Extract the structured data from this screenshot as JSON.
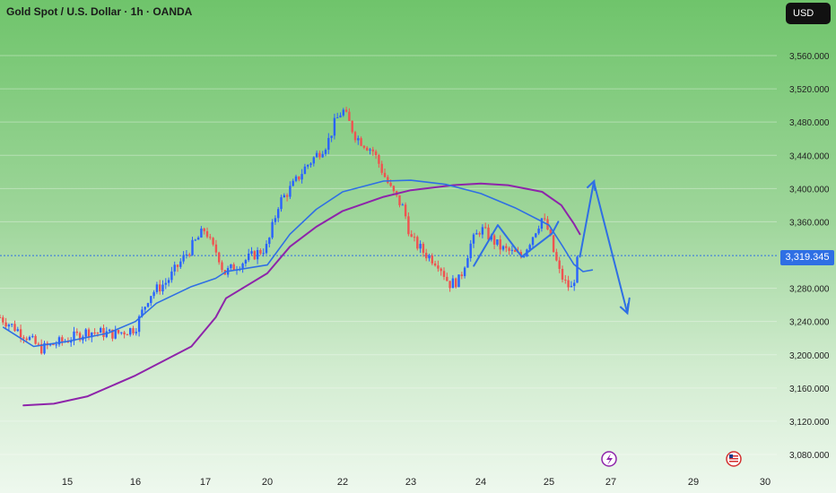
{
  "header": {
    "title": "Gold Spot / U.S. Dollar · 1h · OANDA",
    "currency": "USD"
  },
  "current_price": "3,319.345",
  "colors": {
    "up": "#2962ff",
    "down": "#ef5350",
    "ma_fast": "#2f6fe4",
    "ma_slow": "#8e24aa",
    "projection": "#2f6fe4"
  },
  "icons": [
    "lightning-icon",
    "us-flag-icon"
  ],
  "chart_data": {
    "type": "candlestick",
    "y_tick_labels": [
      "3,560.000",
      "3,520.000",
      "3,480.000",
      "3,440.000",
      "3,400.000",
      "3,360.000",
      "3,280.000",
      "3,240.000",
      "3,200.000",
      "3,160.000",
      "3,120.000",
      "3,080.000"
    ],
    "y_tick_values": [
      3560,
      3520,
      3480,
      3440,
      3400,
      3360,
      3280,
      3240,
      3200,
      3160,
      3120,
      3080
    ],
    "x_tick_labels": [
      "15",
      "16",
      "17",
      "20",
      "22",
      "23",
      "24",
      "25",
      "27",
      "29",
      "30"
    ],
    "x_tick_days": [
      15,
      16,
      17,
      20,
      22,
      23,
      24,
      25,
      27,
      29,
      30
    ],
    "ylim": [
      3075,
      3595
    ],
    "last_price": 3319.345,
    "candles_close_path": [
      [
        14.0,
        3245
      ],
      [
        14.4,
        3222
      ],
      [
        14.6,
        3207
      ],
      [
        15.0,
        3218
      ],
      [
        15.3,
        3228
      ],
      [
        15.7,
        3225
      ],
      [
        16.0,
        3232
      ],
      [
        16.2,
        3272
      ],
      [
        16.45,
        3288
      ],
      [
        16.7,
        3318
      ],
      [
        17.0,
        3352
      ],
      [
        17.3,
        3330
      ],
      [
        17.6,
        3322
      ],
      [
        17.9,
        3298
      ],
      [
        20.0,
        3330
      ],
      [
        20.3,
        3382
      ],
      [
        20.7,
        3405
      ],
      [
        21.0,
        3425
      ],
      [
        21.3,
        3440
      ],
      [
        21.6,
        3455
      ],
      [
        21.8,
        3480
      ],
      [
        22.0,
        3495
      ],
      [
        22.2,
        3462
      ],
      [
        22.45,
        3445
      ],
      [
        22.7,
        3400
      ],
      [
        22.9,
        3375
      ],
      [
        23.0,
        3340
      ],
      [
        23.2,
        3322
      ],
      [
        23.4,
        3310
      ],
      [
        23.55,
        3285
      ],
      [
        23.7,
        3290
      ],
      [
        23.85,
        3332
      ],
      [
        24.0,
        3352
      ],
      [
        24.3,
        3328
      ],
      [
        24.6,
        3318
      ],
      [
        24.9,
        3365
      ],
      [
        25.1,
        3330
      ],
      [
        25.35,
        3298
      ],
      [
        25.55,
        3285
      ],
      [
        25.75,
        3279
      ],
      [
        25.95,
        3318
      ]
    ],
    "ma_fast": [
      [
        14.05,
        3233
      ],
      [
        14.5,
        3210
      ],
      [
        15.0,
        3216
      ],
      [
        15.6,
        3226
      ],
      [
        16.0,
        3240
      ],
      [
        16.3,
        3262
      ],
      [
        16.8,
        3282
      ],
      [
        17.5,
        3292
      ],
      [
        18.0,
        3300
      ],
      [
        20.0,
        3308
      ],
      [
        20.6,
        3345
      ],
      [
        21.3,
        3375
      ],
      [
        22.0,
        3396
      ],
      [
        22.6,
        3409
      ],
      [
        23.0,
        3410
      ],
      [
        23.5,
        3405
      ],
      [
        24.0,
        3394
      ],
      [
        24.5,
        3377
      ],
      [
        25.0,
        3356
      ],
      [
        25.4,
        3333
      ],
      [
        25.8,
        3309
      ],
      [
        26.1,
        3300
      ],
      [
        26.4,
        3302
      ]
    ],
    "ma_slow": [
      [
        14.35,
        3139
      ],
      [
        14.8,
        3141
      ],
      [
        15.3,
        3150
      ],
      [
        16.0,
        3175
      ],
      [
        16.8,
        3210
      ],
      [
        17.5,
        3245
      ],
      [
        18.0,
        3268
      ],
      [
        20.0,
        3298
      ],
      [
        20.6,
        3330
      ],
      [
        21.3,
        3354
      ],
      [
        22.0,
        3373
      ],
      [
        22.6,
        3390
      ],
      [
        23.0,
        3398
      ],
      [
        23.6,
        3404
      ],
      [
        24.0,
        3406
      ],
      [
        24.4,
        3404
      ],
      [
        24.9,
        3396
      ],
      [
        25.4,
        3380
      ],
      [
        25.8,
        3358
      ],
      [
        26.0,
        3345
      ]
    ],
    "projection": [
      [
        26.0,
        3318
      ],
      [
        26.45,
        3408
      ],
      [
        27.4,
        3250
      ],
      [
        27.45,
        3268
      ]
    ],
    "pattern_lines": [
      [
        23.9,
        3307
      ],
      [
        24.25,
        3356
      ],
      [
        24.6,
        3318
      ],
      [
        25.1,
        3346
      ],
      [
        25.3,
        3360
      ]
    ]
  }
}
